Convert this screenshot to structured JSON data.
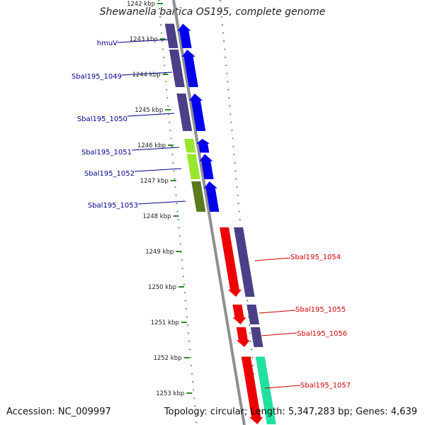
{
  "title": "Shewanella baltica OS195, complete genome",
  "footer": {
    "accession": "Accession: NC_009997",
    "summary": "Topology: circular; Length: 5,347,283 bp; Genes: 4,639"
  },
  "colors": {
    "forward_strand": "#0000ee",
    "reverse_strand": "#ee0000",
    "cog_purple": "#4b3f87",
    "cog_lime": "#99e62e",
    "cog_olive": "#5c7a20",
    "cog_teal": "#22e0a0",
    "backbone": "#8f8f8f",
    "tick_green": "#2e8a2e",
    "label_blue": "#00008b",
    "label_red": "#cc0000"
  },
  "ticks": [
    {
      "label": "1242 kbp",
      "kbp": 1242
    },
    {
      "label": "1243 kbp",
      "kbp": 1243
    },
    {
      "label": "1244 kbp",
      "kbp": 1244
    },
    {
      "label": "1245 kbp",
      "kbp": 1245
    },
    {
      "label": "1246 kbp",
      "kbp": 1246
    },
    {
      "label": "1247 kbp",
      "kbp": 1247
    },
    {
      "label": "1248 kbp",
      "kbp": 1248
    },
    {
      "label": "1249 kbp",
      "kbp": 1249
    },
    {
      "label": "1250 kbp",
      "kbp": 1250
    },
    {
      "label": "1251 kbp",
      "kbp": 1251
    },
    {
      "label": "1252 kbp",
      "kbp": 1252
    },
    {
      "label": "1253 kbp",
      "kbp": 1253
    }
  ],
  "genes": [
    {
      "name": "hmuV",
      "strand": "forward",
      "start_kbp": 1242.55,
      "end_kbp": 1243.28,
      "cog": "cog_purple"
    },
    {
      "name": "Sbal195_1049",
      "strand": "forward",
      "start_kbp": 1243.28,
      "end_kbp": 1244.38,
      "cog": "cog_purple"
    },
    {
      "name": "Sbal195_1050",
      "strand": "forward",
      "start_kbp": 1244.52,
      "end_kbp": 1245.62,
      "cog": "cog_purple"
    },
    {
      "name": "Sbal195_1051",
      "strand": "forward",
      "start_kbp": 1245.8,
      "end_kbp": 1246.23,
      "cog": "cog_lime"
    },
    {
      "name": "Sbal195_1052",
      "strand": "forward",
      "start_kbp": 1246.23,
      "end_kbp": 1246.98,
      "cog": "cog_lime"
    },
    {
      "name": "Sbal195_1053",
      "strand": "forward",
      "start_kbp": 1247.0,
      "end_kbp": 1247.9,
      "cog": "cog_olive"
    },
    {
      "name": "Sbal195_1054",
      "strand": "reverse",
      "start_kbp": 1248.3,
      "end_kbp": 1250.3,
      "cog": "cog_purple"
    },
    {
      "name": "Sbal195_1055",
      "strand": "reverse",
      "start_kbp": 1250.48,
      "end_kbp": 1251.08,
      "cog": "cog_purple"
    },
    {
      "name": "Sbal195_1056",
      "strand": "reverse",
      "start_kbp": 1251.12,
      "end_kbp": 1251.72,
      "cog": "cog_purple"
    },
    {
      "name": "Sbal195_1057",
      "strand": "reverse",
      "start_kbp": 1251.95,
      "end_kbp": 1253.9,
      "cog": "cog_teal"
    }
  ],
  "gene_labels_visible": [
    "hmuV",
    "Sbal195_1049",
    "Sbal195_1050",
    "Sbal195_1051",
    "Sbal195_1052",
    "Sbal195_1053",
    "Sbal195_1054",
    "Sbal195_1055",
    "Sbal195_1056",
    "Sbal195_1057"
  ]
}
